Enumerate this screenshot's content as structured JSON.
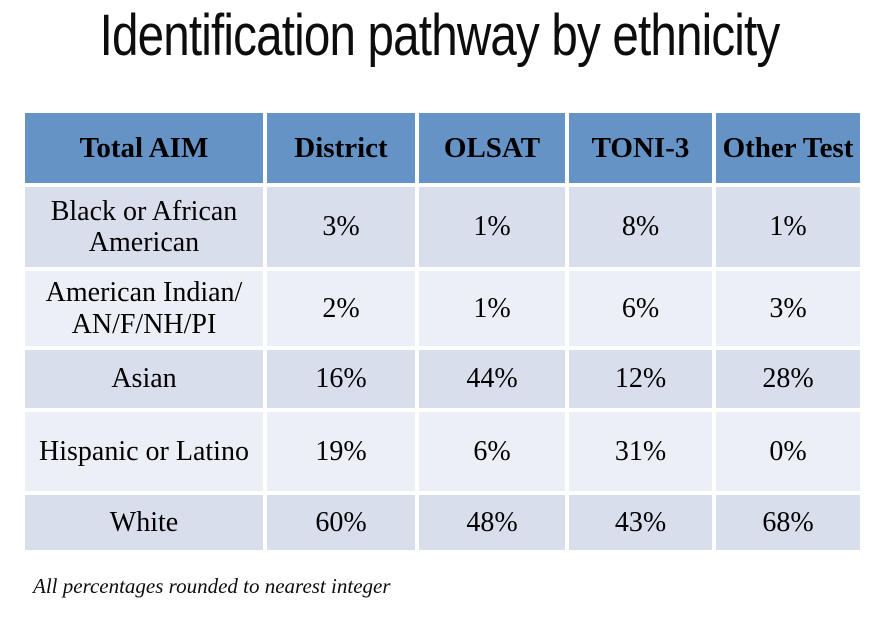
{
  "slide": {
    "title": "Identification pathway by ethnicity",
    "footnote": "All percentages rounded to nearest integer"
  },
  "table": {
    "headers": [
      "Total AIM",
      "District",
      "OLSAT",
      "TONI-3",
      "Other Test"
    ],
    "rows": [
      {
        "label": "Black or African American",
        "values": [
          "3%",
          "1%",
          "8%",
          "1%"
        ]
      },
      {
        "label": "American Indian/ AN/F/NH/PI",
        "values": [
          "2%",
          "1%",
          "6%",
          "3%"
        ]
      },
      {
        "label": "Asian",
        "values": [
          "16%",
          "44%",
          "12%",
          "28%"
        ]
      },
      {
        "label": "Hispanic or Latino",
        "values": [
          "19%",
          "6%",
          "31%",
          "0%"
        ]
      },
      {
        "label": "White",
        "values": [
          "60%",
          "48%",
          "43%",
          "68%"
        ]
      }
    ]
  },
  "colors": {
    "header_bg": "#6593C5",
    "row_dark_bg": "#D9DEEC",
    "row_light_bg": "#EDEFF6",
    "text": "#000000",
    "grid_line": "#FFFFFF"
  }
}
